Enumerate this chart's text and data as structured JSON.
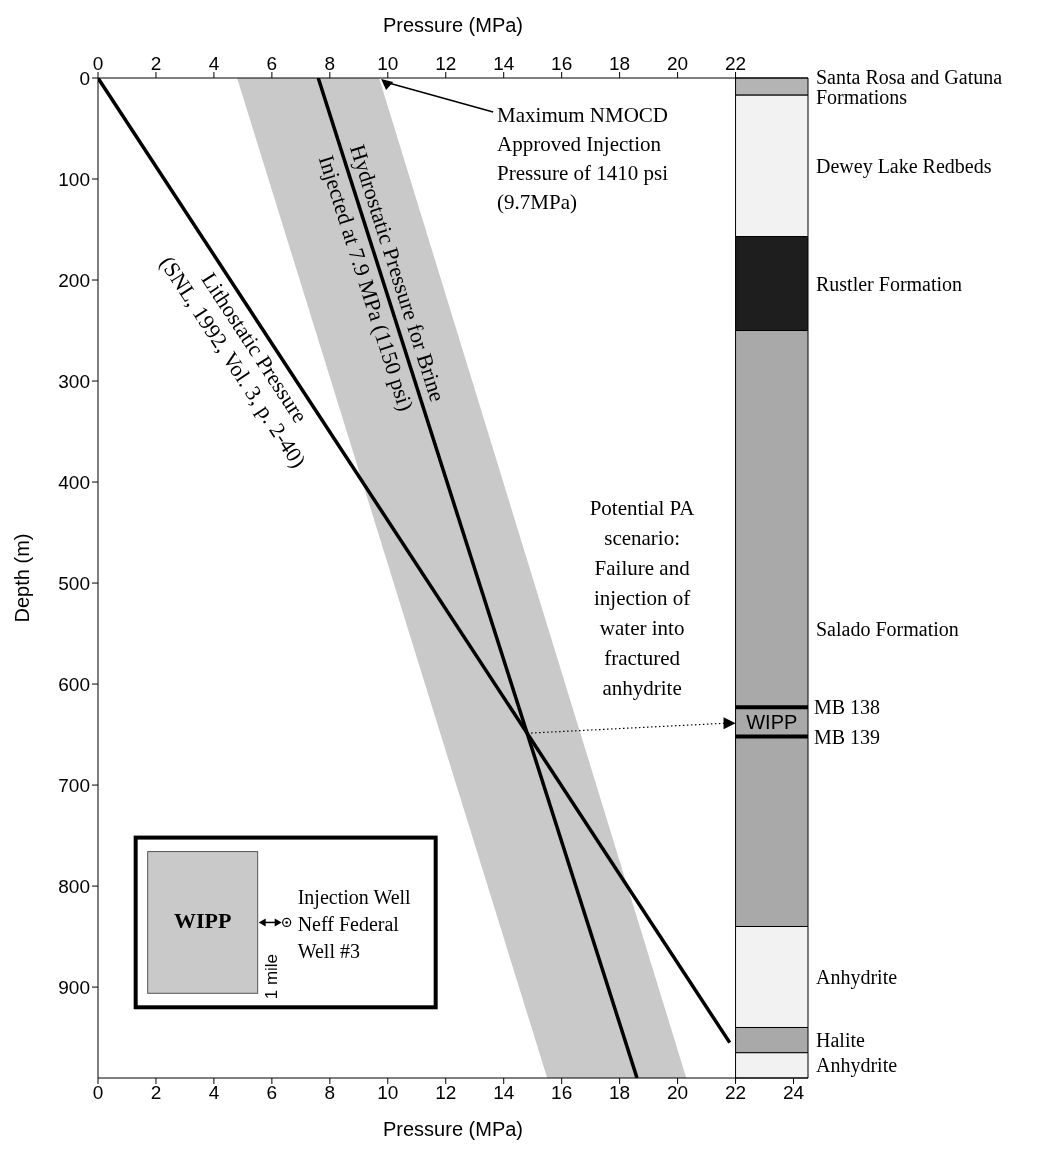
{
  "chart_data": {
    "type": "line",
    "orientation": "horizontal",
    "xlabel": "Pressure (MPa)",
    "x2label": "Pressure (MPa)",
    "ylabel": "Depth (m)",
    "xlim": [
      0,
      24.5
    ],
    "xticks": [
      0,
      2,
      4,
      6,
      8,
      10,
      12,
      14,
      16,
      18,
      20,
      22,
      24
    ],
    "x2lim": [
      0,
      24.5
    ],
    "x2ticks": [
      0,
      2,
      4,
      6,
      8,
      10,
      12,
      14,
      16,
      18,
      20,
      22
    ],
    "ylim": [
      990,
      0
    ],
    "yticks": [
      0,
      100,
      200,
      300,
      400,
      500,
      600,
      700,
      800,
      900
    ],
    "series": [
      {
        "name": "Lithostatic Pressure",
        "color": "#000000",
        "x": [
          0,
          955
        ],
        "values": [
          0,
          21.8
        ]
      },
      {
        "name": "Hydrostatic Pressure for Brine",
        "color": "#000000",
        "x": [
          0,
          990
        ],
        "values": [
          7.6,
          18.6
        ],
        "lower": [
          4.8,
          15.5
        ],
        "upper": [
          9.7,
          20.3
        ]
      }
    ],
    "bands": [
      {
        "axis": "y",
        "from": 0,
        "to": 17,
        "label": "Santa Rosa and Gatuna Formations",
        "color": "#b4b4b4"
      },
      {
        "axis": "y",
        "from": 17,
        "to": 157,
        "label": "Dewey Lake Redbeds",
        "color": "#f2f2f2"
      },
      {
        "axis": "y",
        "from": 157,
        "to": 250,
        "label": "Rustler Formation",
        "color": "#1e1e1e"
      },
      {
        "axis": "y",
        "from": 250,
        "to": 840,
        "label": "Salado Formation",
        "color": "#a9a9a9"
      },
      {
        "axis": "y",
        "from": 840,
        "to": 940,
        "label": "Anhydrite",
        "color": "#f2f2f2"
      },
      {
        "axis": "y",
        "from": 940,
        "to": 965,
        "label": "Halite",
        "color": "#a9a9a9"
      },
      {
        "axis": "y",
        "from": 965,
        "to": 990,
        "label": "Anhydrite",
        "color": "#f2f2f2"
      }
    ],
    "ref_lines": [
      {
        "axis": "y",
        "value": 623,
        "label": "MB 138",
        "color": "#000000"
      },
      {
        "axis": "y",
        "value": 652,
        "label": "MB 139",
        "color": "#000000"
      }
    ],
    "annotations": [
      {
        "text": "Maximum NMOCD Approved Injection Pressure of 1410 psi (9.7MPa)",
        "x": 9.7,
        "y": 0
      },
      "Potential PA scenario: Failure and injection of water into fractured anhydrite",
      "WIPP",
      "(SNL, 1992, Vol. 3, p. 2-40)",
      "Injected at 7.9 MPa (1150 psi)",
      "WIPP",
      "1 mile",
      "Injection Well Neff Federal Well #3"
    ],
    "grid": false,
    "legend": false,
    "marker": "none",
    "line_style": "solid"
  }
}
